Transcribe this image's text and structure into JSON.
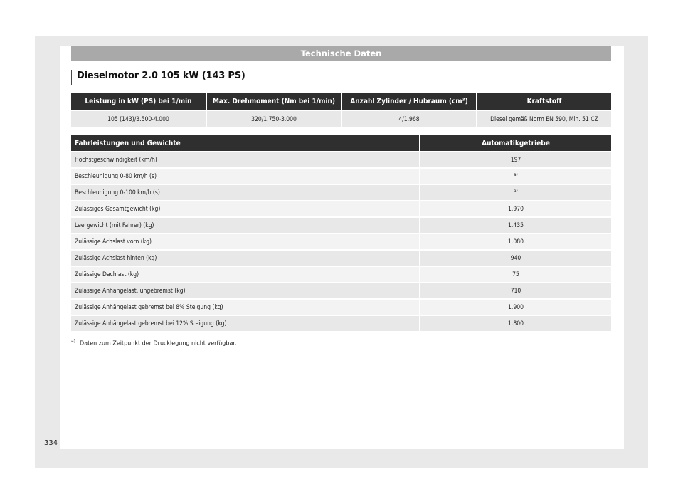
{
  "header": {
    "title": "Technische Daten"
  },
  "section": {
    "title": "Dieselmotor 2.0 105 kW (143 PS)"
  },
  "engine_table": {
    "headers": [
      "Leistung in kW (PS) bei 1/min",
      "Max. Drehmoment (Nm bei 1/min)",
      "Anzahl Zylinder / Hubraum (cm³)",
      "Kraftstoff"
    ],
    "values": [
      "105 (143)/3.500-4.000",
      "320/1.750-3.000",
      "4/1.968",
      "Diesel gemäß Norm EN 590, Min. 51 CZ"
    ]
  },
  "performance_table": {
    "header_label": "Fahrleistungen und Gewichte",
    "header_value": "Automatikgetriebe",
    "rows": [
      {
        "label": "Höchstgeschwindigkeit (km/h)",
        "value": "197"
      },
      {
        "label": "Beschleunigung 0-80 km/h (s)",
        "value": "a)"
      },
      {
        "label": "Beschleunigung 0-100 km/h (s)",
        "value": "a)"
      },
      {
        "label": "Zulässiges Gesamtgewicht (kg)",
        "value": "1.970"
      },
      {
        "label": "Leergewicht (mit Fahrer) (kg)",
        "value": "1.435"
      },
      {
        "label": "Zulässige Achslast vorn (kg)",
        "value": "1.080"
      },
      {
        "label": "Zulässige Achslast hinten (kg)",
        "value": "940"
      },
      {
        "label": "Zulässige Dachlast (kg)",
        "value": "75"
      },
      {
        "label": "Zulässige Anhängelast, ungebremst (kg)",
        "value": "710"
      },
      {
        "label": "Zulässige Anhängelast gebremst bei 8% Steigung (kg)",
        "value": "1.900"
      },
      {
        "label": "Zulässige Anhängelast gebremst bei 12% Steigung (kg)",
        "value": "1.800"
      }
    ]
  },
  "footnote": {
    "marker": "a)",
    "text": "Daten zum Zeitpunkt der Drucklegung nicht verfügbar."
  },
  "page_number": "334",
  "colors": {
    "accent": "#c0112a",
    "header_bar": "#a9a9a9",
    "table_header": "#2f2f2f"
  }
}
